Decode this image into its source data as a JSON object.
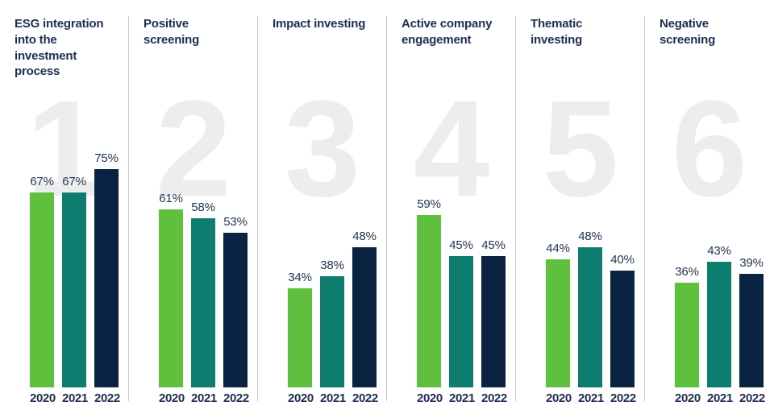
{
  "colors": {
    "bar_green_2020": "#5ec03c",
    "bar_teal_2021": "#0c7d6e",
    "bar_navy_2022": "#0b2343",
    "text_navy": "#1e2d55",
    "value_label_navy": "#233455",
    "watermark_gray": "#ededef",
    "divider_gray": "#c5c7ca",
    "background": "#ffffff"
  },
  "chart_data": {
    "type": "bar",
    "unit": "%",
    "categories": [
      "2020",
      "2021",
      "2022"
    ],
    "series_colors": [
      "#5ec03c",
      "#0c7d6e",
      "#0b2343"
    ],
    "ylim": [
      0,
      100
    ],
    "grid": false,
    "legend": "none",
    "value_labels_shown": true,
    "groups": [
      {
        "number": "1",
        "title": "ESG integration into the investment process",
        "values": [
          67,
          67,
          75
        ],
        "labels": [
          "67%",
          "67%",
          "75%"
        ]
      },
      {
        "number": "2",
        "title": "Positive screening",
        "values": [
          61,
          58,
          53
        ],
        "labels": [
          "61%",
          "58%",
          "53%"
        ]
      },
      {
        "number": "3",
        "title": "Impact investing",
        "values": [
          34,
          38,
          48
        ],
        "labels": [
          "34%",
          "38%",
          "48%"
        ]
      },
      {
        "number": "4",
        "title": "Active company engagement",
        "values": [
          59,
          45,
          45
        ],
        "labels": [
          "59%",
          "45%",
          "45%"
        ]
      },
      {
        "number": "5",
        "title": "Thematic investing",
        "values": [
          44,
          48,
          40
        ],
        "labels": [
          "44%",
          "48%",
          "40%"
        ]
      },
      {
        "number": "6",
        "title": "Negative screening",
        "values": [
          36,
          43,
          39
        ],
        "labels": [
          "36%",
          "43%",
          "39%"
        ]
      }
    ]
  }
}
